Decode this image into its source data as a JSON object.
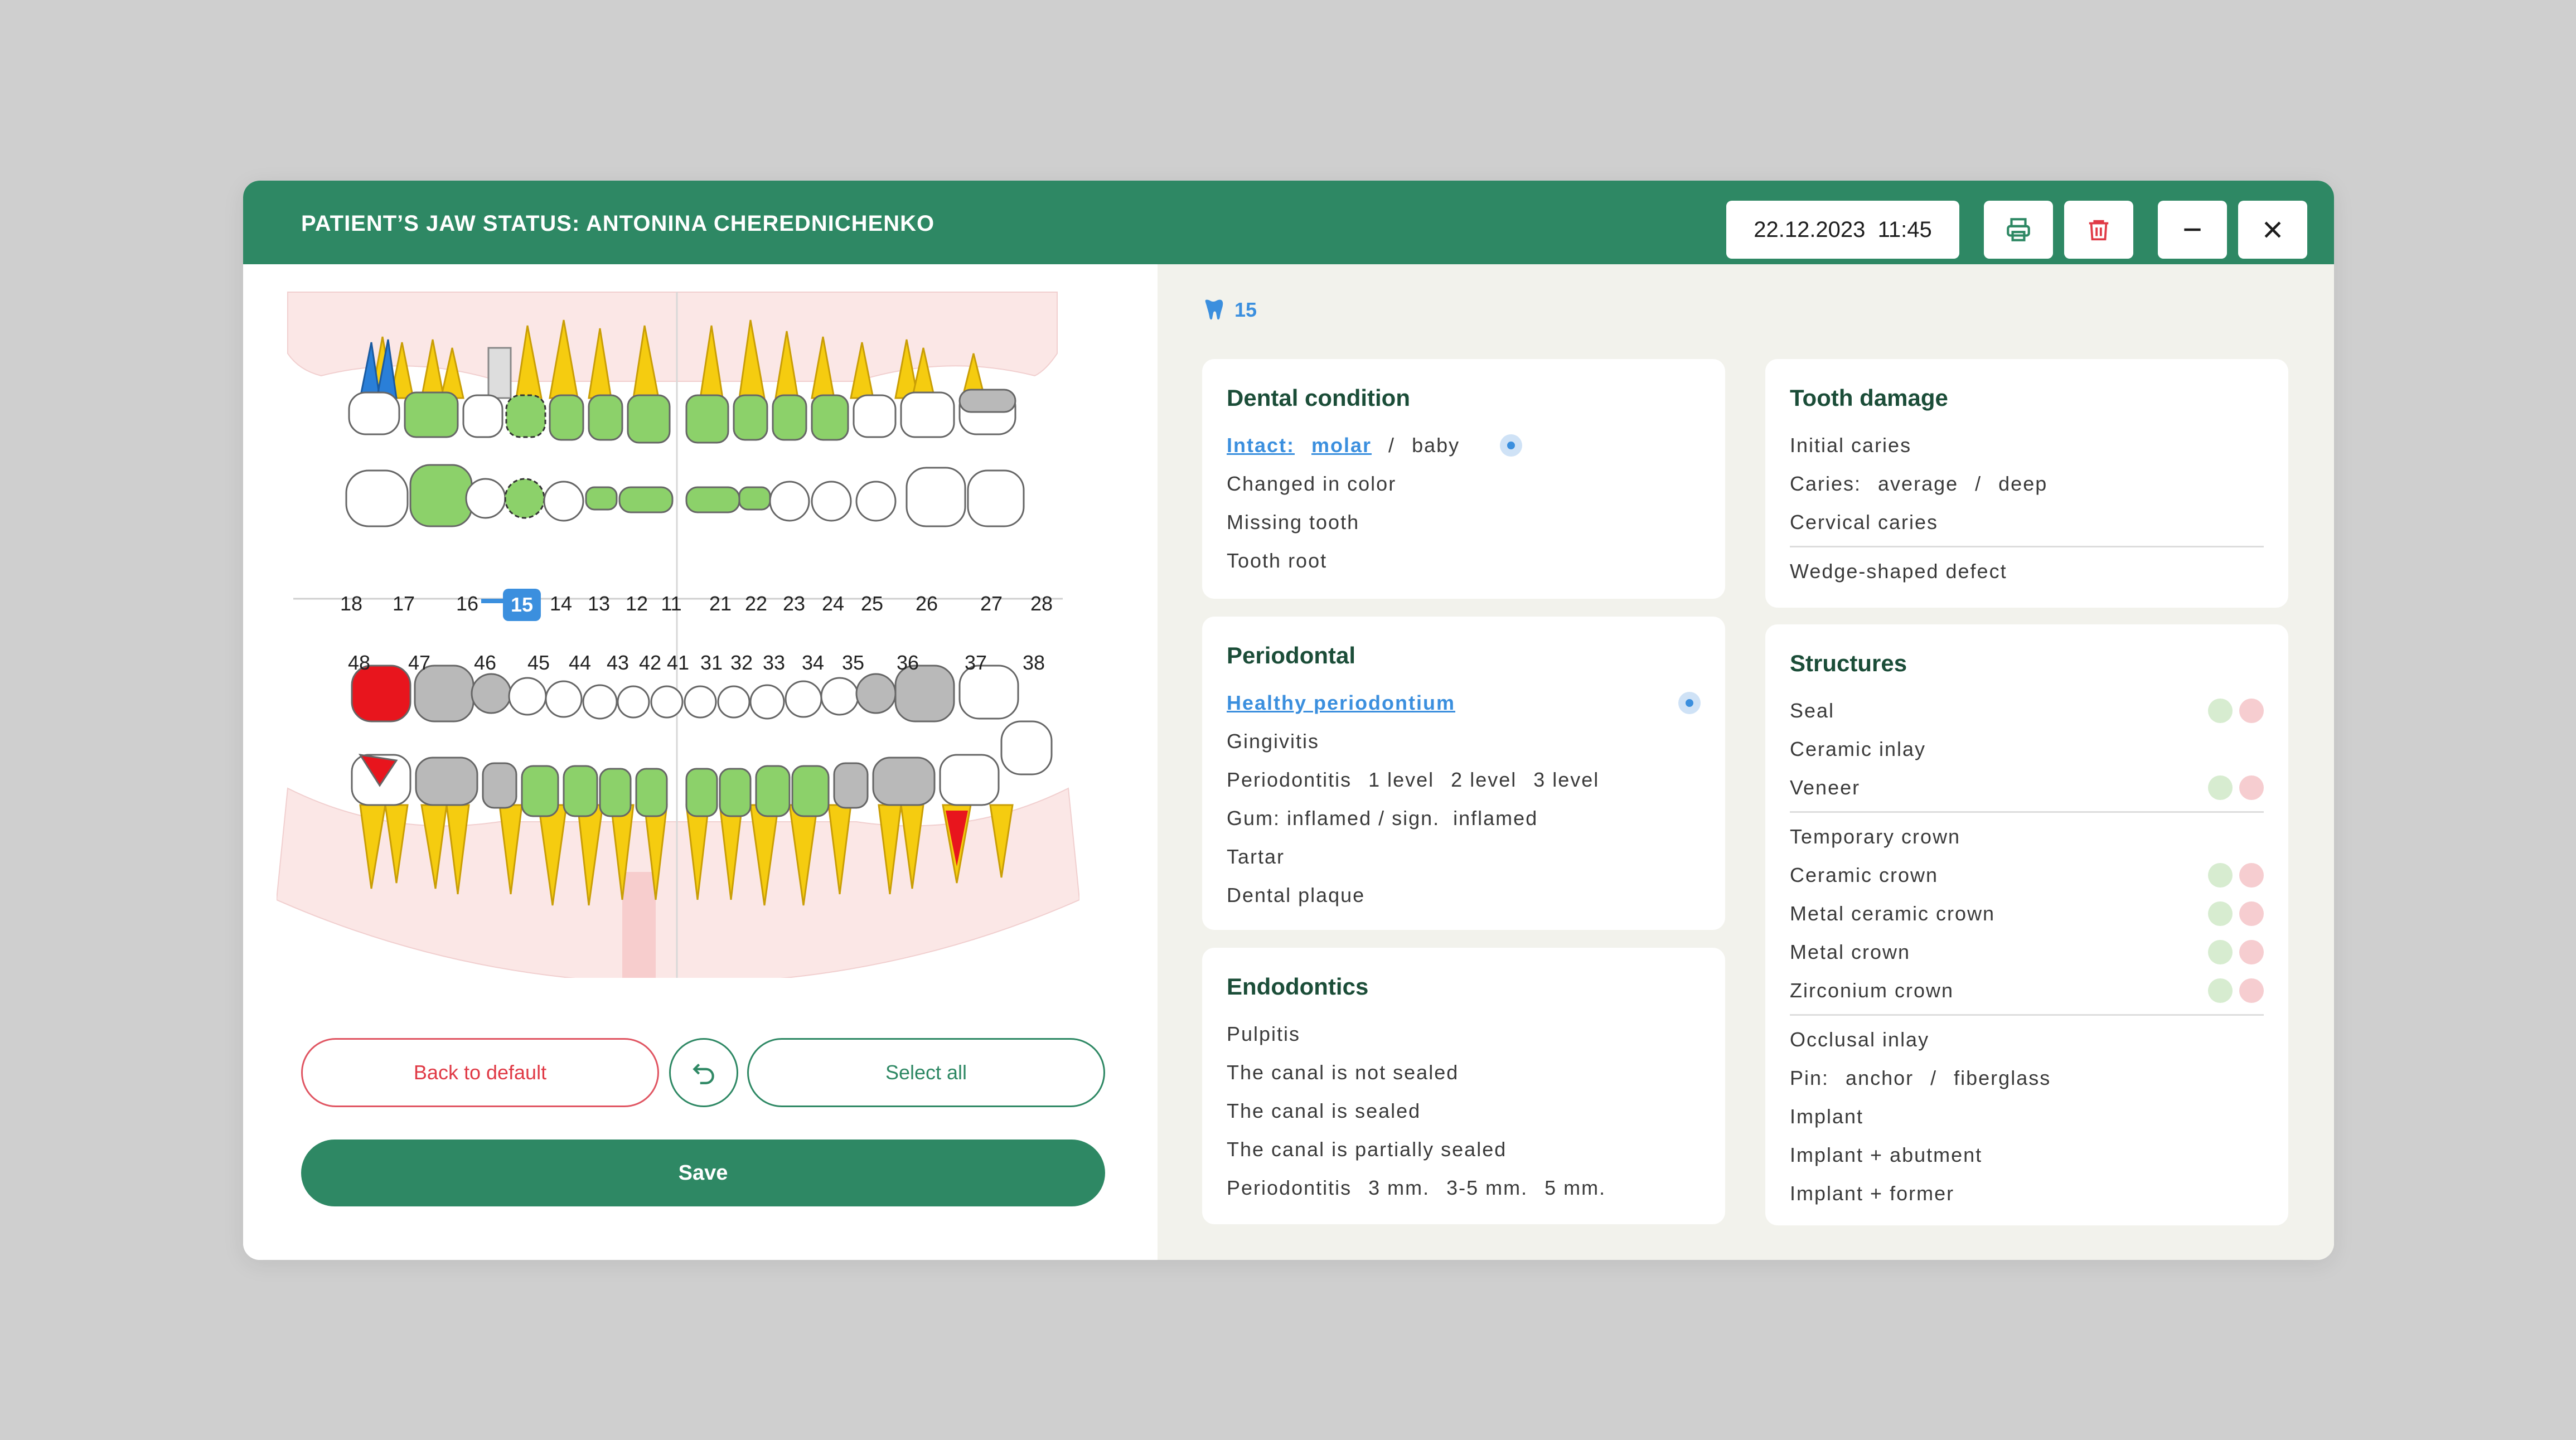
{
  "header": {
    "title": "PATIENT’S JAW STATUS: ANTONINA CHEREDNICHENKO",
    "datetime": "22.12.2023  11:45"
  },
  "icons": [
    "print-icon",
    "trash-icon",
    "minimize-icon",
    "close-icon",
    "tooth-icon",
    "undo-icon"
  ],
  "colors": {
    "brand": "#2e8864",
    "accent": "#3b8fde",
    "danger": "#e03a46",
    "filled": "#8cd16a",
    "root": "#f5cc10",
    "caries": "#e8151d",
    "crown": "#b9b9b9"
  },
  "upper_numbers": [
    "18",
    "17",
    "16",
    "15",
    "14",
    "13",
    "12",
    "11",
    "21",
    "22",
    "23",
    "24",
    "25",
    "26",
    "27",
    "28"
  ],
  "lower_numbers": [
    "48",
    "47",
    "46",
    "45",
    "44",
    "43",
    "42",
    "41",
    "31",
    "32",
    "33",
    "34",
    "35",
    "36",
    "37",
    "38"
  ],
  "selected_tooth": "15",
  "buttons": {
    "back": "Back to default",
    "select_all": "Select all",
    "save": "Save"
  },
  "breadcrumb": "15",
  "dental": {
    "title": "Dental condition",
    "intact": "Intact:",
    "molar": "molar",
    "slash": "/",
    "baby": "baby",
    "items": [
      "Changed in color",
      "Missing tooth",
      "Tooth root"
    ]
  },
  "perio": {
    "title": "Periodontal",
    "healthy": "Healthy periodontium",
    "gingivitis": "Gingivitis",
    "periodontitis": "Periodontitis",
    "l1": "1 level",
    "l2": "2 level",
    "l3": "3 level",
    "gum": "Gum: inflamed / sign.",
    "inflamed": "inflamed",
    "tartar": "Tartar",
    "plaque": "Dental plaque"
  },
  "endo": {
    "title": "Endodontics",
    "pulpitis": "Pulpitis",
    "not_sealed": "The canal is not sealed",
    "sealed": "The canal is sealed",
    "partial": "The canal is partially sealed",
    "periodontitis": "Periodontitis",
    "m1": "3 mm.",
    "m2": "3-5 mm.",
    "m3": "5 mm."
  },
  "damage": {
    "title": "Tooth damage",
    "initial": "Initial caries",
    "caries": "Caries:",
    "average": "average",
    "slash": "/",
    "deep": "deep",
    "cervical": "Cervical caries",
    "wedge": "Wedge-shaped defect"
  },
  "structures": {
    "title": "Structures",
    "seal": "Seal",
    "ceramic_inlay": "Ceramic inlay",
    "veneer": "Veneer",
    "temp_crown": "Temporary crown",
    "ceramic_crown": "Ceramic crown",
    "metal_ceramic": "Metal ceramic crown",
    "metal_crown": "Metal crown",
    "zirconium": "Zirconium crown",
    "occlusal": "Occlusal inlay",
    "pin": "Pin:",
    "anchor": "anchor",
    "slash": "/",
    "fiberglass": "fiberglass",
    "implant": "Implant",
    "implant_abutment": "Implant + abutment",
    "implant_former": "Implant + former"
  }
}
